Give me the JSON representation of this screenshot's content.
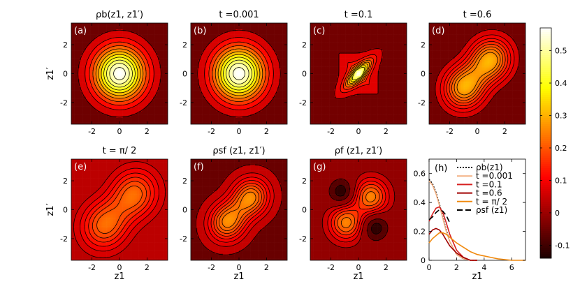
{
  "chart_data": {
    "type": "heatmap",
    "colorbar": {
      "min": -0.14,
      "max": 0.57,
      "ticks": [
        "0.5",
        "0.4",
        "0.3",
        "0.2",
        "0.1",
        "0",
        "-0.1"
      ],
      "tick_values": [
        0.5,
        0.4,
        0.3,
        0.2,
        0.1,
        0,
        -0.1
      ],
      "colormap": "hot"
    },
    "panels": [
      {
        "letter": "(a)",
        "title": "ρb(z1, z1′)",
        "kind": "gauss",
        "peak": 0.57,
        "sigma": 1.0,
        "contours": [
          0.04,
          0.09,
          0.14,
          0.19,
          0.24,
          0.29,
          0.34,
          0.39,
          0.44,
          0.49,
          0.54
        ]
      },
      {
        "letter": "(b)",
        "title": "t =0.001",
        "kind": "gauss",
        "peak": 0.57,
        "sigma": 1.0,
        "contours": [
          0.04,
          0.09,
          0.14,
          0.19,
          0.24,
          0.29,
          0.34,
          0.39,
          0.44,
          0.49,
          0.54
        ]
      },
      {
        "letter": "(c)",
        "title": "t =0.1",
        "kind": "diamond",
        "peak": 0.45,
        "contours": [
          0.05,
          0.1,
          0.15,
          0.2,
          0.25,
          0.3,
          0.35,
          0.4
        ]
      },
      {
        "letter": "(d)",
        "title": "t =0.6",
        "kind": "double",
        "peak": 0.3,
        "offset": 1.0,
        "spread": 1.0,
        "contours": [
          0.05,
          0.08,
          0.11,
          0.14,
          0.17,
          0.2,
          0.23,
          0.26
        ]
      },
      {
        "letter": "(e)",
        "title": "t = π/ 2",
        "kind": "double",
        "peak": 0.22,
        "offset": 1.15,
        "spread": 1.15,
        "contours": [
          0.02,
          0.05,
          0.08,
          0.11,
          0.14,
          0.17,
          0.2
        ]
      },
      {
        "letter": "(f)",
        "title": "ρsf (z1, z1′)",
        "kind": "double",
        "peak": 0.26,
        "offset": 0.9,
        "spread": 0.9,
        "contours": [
          0.03,
          0.06,
          0.09,
          0.12,
          0.15,
          0.18,
          0.21,
          0.24
        ]
      },
      {
        "letter": "(g)",
        "title": "ρf (z1, z1′)",
        "kind": "signed",
        "peak": 0.28,
        "contours": [
          -0.1,
          -0.05,
          0.03,
          0.07,
          0.11,
          0.15,
          0.19,
          0.23
        ]
      }
    ],
    "contour_axes": {
      "xlim": [
        -3.5,
        3.5
      ],
      "ylim": [
        -3.5,
        3.5
      ],
      "xticks": [
        "-2",
        "0",
        "2"
      ],
      "xtick_values": [
        -2,
        0,
        2
      ],
      "yticks": [
        "2",
        "0",
        "-2"
      ],
      "ytick_values": [
        2,
        0,
        -2
      ],
      "xlabel": "z1",
      "ylabel": "z1′"
    },
    "line_panel": {
      "letter": "(h)",
      "type": "line",
      "xlim": [
        0,
        7
      ],
      "ylim": [
        0,
        0.7
      ],
      "xticks": [
        "0",
        "2",
        "4",
        "6"
      ],
      "xtick_values": [
        0,
        2,
        4,
        6
      ],
      "yticks": [
        "0.6",
        "0.4",
        "0.2",
        "0"
      ],
      "ytick_values": [
        0.6,
        0.4,
        0.2,
        0
      ],
      "xlabel": "z1",
      "series": [
        {
          "name": "ρb(z1)",
          "color": "#000000",
          "dash": "2,2",
          "x": [
            0,
            0.25,
            0.5,
            0.75,
            1,
            1.25,
            1.5,
            2,
            2.5,
            3,
            3.5
          ],
          "y": [
            0.56,
            0.53,
            0.47,
            0.39,
            0.3,
            0.21,
            0.13,
            0.04,
            0.01,
            0.0,
            0.0
          ]
        },
        {
          "name": "t =0.001",
          "color": "#f4b183",
          "dash": "",
          "x": [
            0,
            0.25,
            0.5,
            0.75,
            1,
            1.25,
            1.5,
            2,
            2.5,
            3,
            3.5
          ],
          "y": [
            0.55,
            0.52,
            0.46,
            0.38,
            0.29,
            0.2,
            0.13,
            0.04,
            0.01,
            0.0,
            0.0
          ]
        },
        {
          "name": "t =0.1",
          "color": "#d62020",
          "dash": "",
          "x": [
            0,
            0.25,
            0.5,
            0.75,
            1,
            1.25,
            1.5,
            2,
            2.5,
            3,
            3.5
          ],
          "y": [
            0.27,
            0.32,
            0.36,
            0.37,
            0.33,
            0.26,
            0.18,
            0.07,
            0.02,
            0.0,
            0.0
          ]
        },
        {
          "name": "t =0.6",
          "color": "#a00000",
          "dash": "",
          "x": [
            0,
            0.25,
            0.5,
            0.75,
            1,
            1.25,
            1.5,
            2,
            2.5,
            3,
            3.5
          ],
          "y": [
            0.18,
            0.21,
            0.22,
            0.21,
            0.18,
            0.14,
            0.1,
            0.05,
            0.02,
            0.0,
            0.0
          ]
        },
        {
          "name": "t = π/ 2",
          "color": "#f08a10",
          "dash": "",
          "x": [
            0,
            0.25,
            0.5,
            0.75,
            1,
            1.25,
            1.5,
            2,
            2.5,
            3,
            3.5,
            4,
            4.5,
            5,
            6,
            7
          ],
          "y": [
            0.12,
            0.15,
            0.17,
            0.19,
            0.19,
            0.18,
            0.16,
            0.12,
            0.09,
            0.06,
            0.04,
            0.03,
            0.02,
            0.01,
            0.0,
            0.0
          ]
        },
        {
          "name": "ρsf (z1)",
          "color": "#000000",
          "dash": "8,4",
          "x": [
            0,
            0.25,
            0.5,
            0.75,
            1,
            1.25,
            1.5
          ],
          "y": [
            0.28,
            0.3,
            0.33,
            0.35,
            0.34,
            0.31,
            0.26
          ]
        }
      ]
    }
  }
}
